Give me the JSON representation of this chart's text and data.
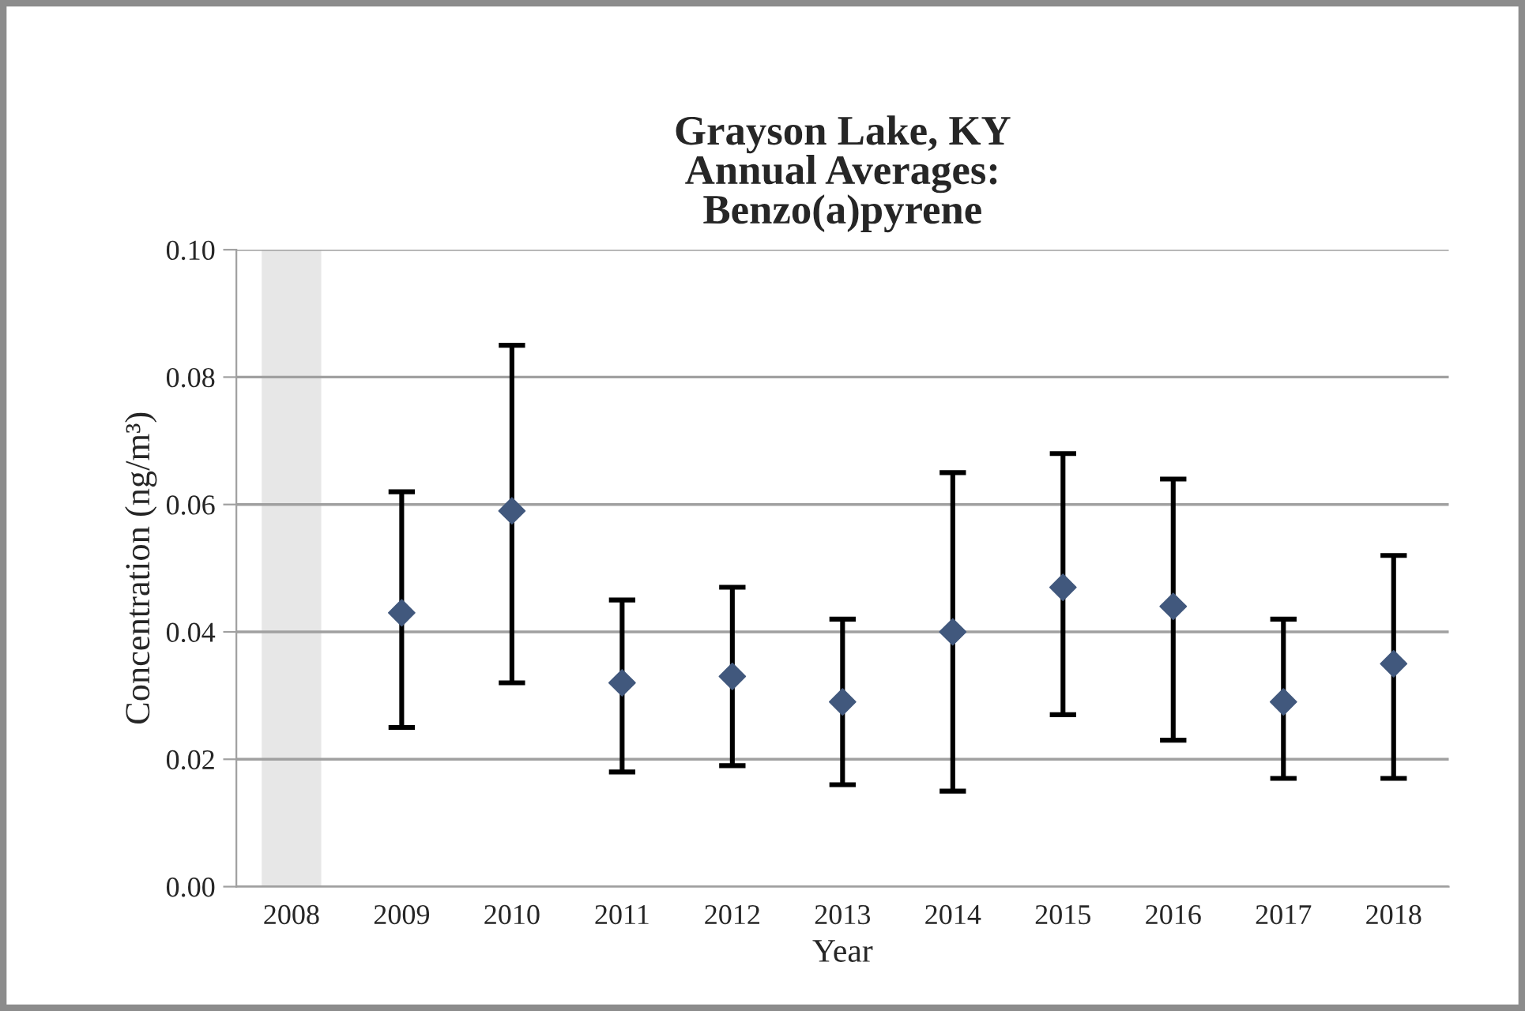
{
  "chart_data": {
    "type": "scatter",
    "title": "Grayson Lake, KY\nAnnual Averages:\nBenzo(a)pyrene",
    "xlabel": "Year",
    "ylabel": "Concentration (ng/m³)",
    "categories": [
      "2008",
      "2009",
      "2010",
      "2011",
      "2012",
      "2013",
      "2014",
      "2015",
      "2016",
      "2017",
      "2018"
    ],
    "series": [
      {
        "color": "#41587d",
        "values": [
          null,
          0.043,
          0.059,
          0.032,
          0.033,
          0.029,
          0.04,
          0.047,
          0.044,
          0.029,
          0.035
        ],
        "errors": [
          null,
          [
            0.025,
            0.062
          ],
          [
            0.032,
            0.085
          ],
          [
            0.018,
            0.045
          ],
          [
            0.019,
            0.047
          ],
          [
            0.016,
            0.042
          ],
          [
            0.015,
            0.065
          ],
          [
            0.027,
            0.068
          ],
          [
            0.023,
            0.064
          ],
          [
            0.017,
            0.042
          ],
          [
            0.017,
            0.052
          ]
        ]
      }
    ],
    "bands": [
      {
        "axis": "x",
        "from": "2008",
        "to": "2008",
        "color": "#e7e7e7"
      }
    ],
    "ylim": [
      0,
      0.1
    ],
    "yticks": [
      {
        "value": 0,
        "label": "0.00"
      },
      {
        "value": 0.02,
        "label": "0.02"
      },
      {
        "value": 0.04,
        "label": "0.04"
      },
      {
        "value": 0.06,
        "label": "0.06"
      },
      {
        "value": 0.08,
        "label": "0.08"
      },
      {
        "value": 0.1,
        "label": "0.10"
      }
    ],
    "grid": "y",
    "marker": "diamond",
    "legend": false
  }
}
